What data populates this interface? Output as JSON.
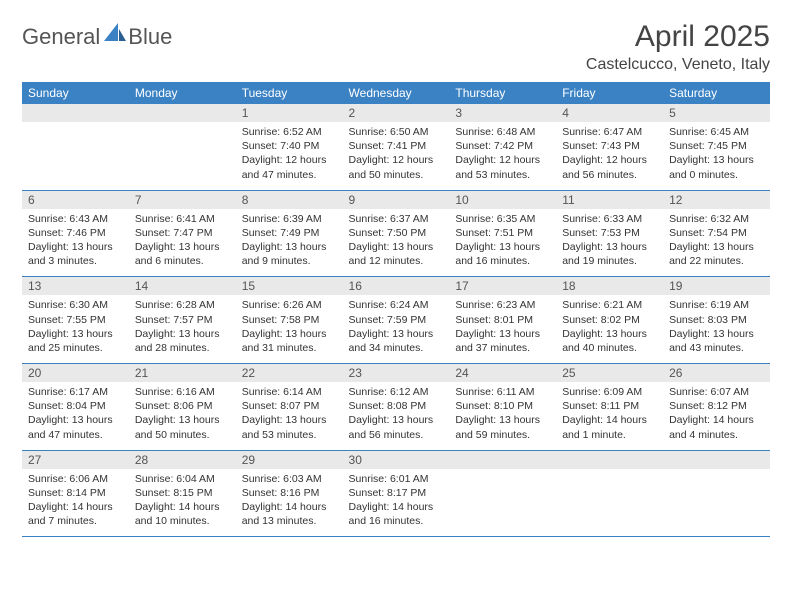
{
  "brand": {
    "name1": "General",
    "name2": "Blue"
  },
  "title": "April 2025",
  "location": "Castelcucco, Veneto, Italy",
  "colors": {
    "header_bg": "#3a82c4",
    "header_text": "#ffffff",
    "daynum_bg": "#e9e9e9",
    "rule": "#3a82c4",
    "body_text": "#333333"
  },
  "weekdays": [
    "Sunday",
    "Monday",
    "Tuesday",
    "Wednesday",
    "Thursday",
    "Friday",
    "Saturday"
  ],
  "weeks": [
    [
      {
        "n": "",
        "lines": [
          "",
          "",
          ""
        ]
      },
      {
        "n": "",
        "lines": [
          "",
          "",
          ""
        ]
      },
      {
        "n": "1",
        "lines": [
          "Sunrise: 6:52 AM",
          "Sunset: 7:40 PM",
          "Daylight: 12 hours and 47 minutes."
        ]
      },
      {
        "n": "2",
        "lines": [
          "Sunrise: 6:50 AM",
          "Sunset: 7:41 PM",
          "Daylight: 12 hours and 50 minutes."
        ]
      },
      {
        "n": "3",
        "lines": [
          "Sunrise: 6:48 AM",
          "Sunset: 7:42 PM",
          "Daylight: 12 hours and 53 minutes."
        ]
      },
      {
        "n": "4",
        "lines": [
          "Sunrise: 6:47 AM",
          "Sunset: 7:43 PM",
          "Daylight: 12 hours and 56 minutes."
        ]
      },
      {
        "n": "5",
        "lines": [
          "Sunrise: 6:45 AM",
          "Sunset: 7:45 PM",
          "Daylight: 13 hours and 0 minutes."
        ]
      }
    ],
    [
      {
        "n": "6",
        "lines": [
          "Sunrise: 6:43 AM",
          "Sunset: 7:46 PM",
          "Daylight: 13 hours and 3 minutes."
        ]
      },
      {
        "n": "7",
        "lines": [
          "Sunrise: 6:41 AM",
          "Sunset: 7:47 PM",
          "Daylight: 13 hours and 6 minutes."
        ]
      },
      {
        "n": "8",
        "lines": [
          "Sunrise: 6:39 AM",
          "Sunset: 7:49 PM",
          "Daylight: 13 hours and 9 minutes."
        ]
      },
      {
        "n": "9",
        "lines": [
          "Sunrise: 6:37 AM",
          "Sunset: 7:50 PM",
          "Daylight: 13 hours and 12 minutes."
        ]
      },
      {
        "n": "10",
        "lines": [
          "Sunrise: 6:35 AM",
          "Sunset: 7:51 PM",
          "Daylight: 13 hours and 16 minutes."
        ]
      },
      {
        "n": "11",
        "lines": [
          "Sunrise: 6:33 AM",
          "Sunset: 7:53 PM",
          "Daylight: 13 hours and 19 minutes."
        ]
      },
      {
        "n": "12",
        "lines": [
          "Sunrise: 6:32 AM",
          "Sunset: 7:54 PM",
          "Daylight: 13 hours and 22 minutes."
        ]
      }
    ],
    [
      {
        "n": "13",
        "lines": [
          "Sunrise: 6:30 AM",
          "Sunset: 7:55 PM",
          "Daylight: 13 hours and 25 minutes."
        ]
      },
      {
        "n": "14",
        "lines": [
          "Sunrise: 6:28 AM",
          "Sunset: 7:57 PM",
          "Daylight: 13 hours and 28 minutes."
        ]
      },
      {
        "n": "15",
        "lines": [
          "Sunrise: 6:26 AM",
          "Sunset: 7:58 PM",
          "Daylight: 13 hours and 31 minutes."
        ]
      },
      {
        "n": "16",
        "lines": [
          "Sunrise: 6:24 AM",
          "Sunset: 7:59 PM",
          "Daylight: 13 hours and 34 minutes."
        ]
      },
      {
        "n": "17",
        "lines": [
          "Sunrise: 6:23 AM",
          "Sunset: 8:01 PM",
          "Daylight: 13 hours and 37 minutes."
        ]
      },
      {
        "n": "18",
        "lines": [
          "Sunrise: 6:21 AM",
          "Sunset: 8:02 PM",
          "Daylight: 13 hours and 40 minutes."
        ]
      },
      {
        "n": "19",
        "lines": [
          "Sunrise: 6:19 AM",
          "Sunset: 8:03 PM",
          "Daylight: 13 hours and 43 minutes."
        ]
      }
    ],
    [
      {
        "n": "20",
        "lines": [
          "Sunrise: 6:17 AM",
          "Sunset: 8:04 PM",
          "Daylight: 13 hours and 47 minutes."
        ]
      },
      {
        "n": "21",
        "lines": [
          "Sunrise: 6:16 AM",
          "Sunset: 8:06 PM",
          "Daylight: 13 hours and 50 minutes."
        ]
      },
      {
        "n": "22",
        "lines": [
          "Sunrise: 6:14 AM",
          "Sunset: 8:07 PM",
          "Daylight: 13 hours and 53 minutes."
        ]
      },
      {
        "n": "23",
        "lines": [
          "Sunrise: 6:12 AM",
          "Sunset: 8:08 PM",
          "Daylight: 13 hours and 56 minutes."
        ]
      },
      {
        "n": "24",
        "lines": [
          "Sunrise: 6:11 AM",
          "Sunset: 8:10 PM",
          "Daylight: 13 hours and 59 minutes."
        ]
      },
      {
        "n": "25",
        "lines": [
          "Sunrise: 6:09 AM",
          "Sunset: 8:11 PM",
          "Daylight: 14 hours and 1 minute."
        ]
      },
      {
        "n": "26",
        "lines": [
          "Sunrise: 6:07 AM",
          "Sunset: 8:12 PM",
          "Daylight: 14 hours and 4 minutes."
        ]
      }
    ],
    [
      {
        "n": "27",
        "lines": [
          "Sunrise: 6:06 AM",
          "Sunset: 8:14 PM",
          "Daylight: 14 hours and 7 minutes."
        ]
      },
      {
        "n": "28",
        "lines": [
          "Sunrise: 6:04 AM",
          "Sunset: 8:15 PM",
          "Daylight: 14 hours and 10 minutes."
        ]
      },
      {
        "n": "29",
        "lines": [
          "Sunrise: 6:03 AM",
          "Sunset: 8:16 PM",
          "Daylight: 14 hours and 13 minutes."
        ]
      },
      {
        "n": "30",
        "lines": [
          "Sunrise: 6:01 AM",
          "Sunset: 8:17 PM",
          "Daylight: 14 hours and 16 minutes."
        ]
      },
      {
        "n": "",
        "lines": [
          "",
          "",
          ""
        ]
      },
      {
        "n": "",
        "lines": [
          "",
          "",
          ""
        ]
      },
      {
        "n": "",
        "lines": [
          "",
          "",
          ""
        ]
      }
    ]
  ]
}
